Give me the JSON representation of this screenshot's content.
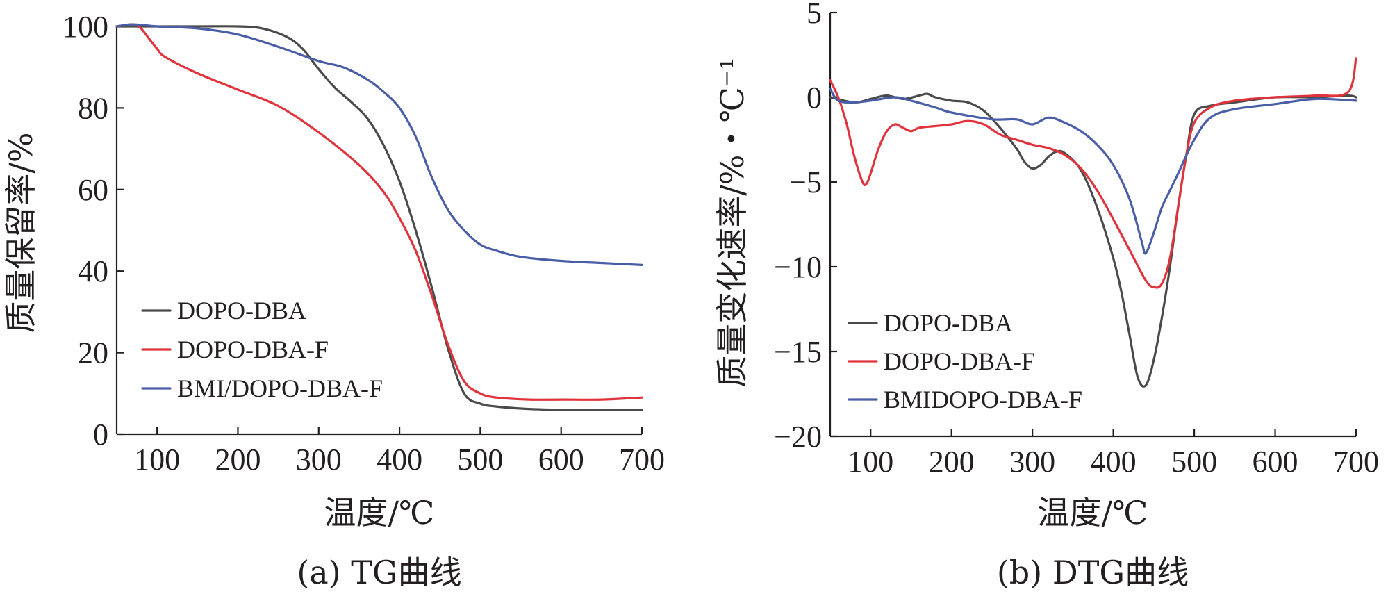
{
  "chart_data": [
    {
      "type": "line",
      "caption": "(a) TG曲线",
      "xlabel": "温度/℃",
      "ylabel": "质量保留率/%",
      "xlim": [
        50,
        700
      ],
      "ylim": [
        0,
        100
      ],
      "xticks": [
        100,
        200,
        300,
        400,
        500,
        600,
        700
      ],
      "yticks": [
        0,
        20,
        40,
        60,
        80,
        100
      ],
      "legend_position": "bottom-left",
      "series": [
        {
          "name": "DOPO-DBA",
          "color": "#4a4a4a",
          "x": [
            50,
            100,
            150,
            200,
            230,
            260,
            280,
            300,
            320,
            340,
            360,
            380,
            400,
            420,
            440,
            460,
            480,
            500,
            520,
            560,
            600,
            650,
            700
          ],
          "y": [
            100,
            100,
            100,
            100,
            99.5,
            97.5,
            94.5,
            89.5,
            85,
            81.5,
            77.5,
            71,
            62,
            50,
            36,
            21,
            10,
            7.5,
            6.8,
            6.2,
            6,
            6,
            6
          ]
        },
        {
          "name": "DOPO-DBA-F",
          "color": "#e0333c",
          "x": [
            50,
            70,
            80,
            90,
            100,
            110,
            150,
            200,
            250,
            300,
            350,
            380,
            400,
            420,
            440,
            460,
            480,
            500,
            520,
            560,
            600,
            650,
            700
          ],
          "y": [
            100,
            100.5,
            99.5,
            97,
            94.5,
            92.5,
            88.5,
            84.5,
            80.5,
            74,
            66,
            59.5,
            53,
            45,
            34,
            22,
            13,
            10,
            9,
            8.5,
            8.5,
            8.5,
            9
          ]
        },
        {
          "name": "BMI/DOPO-DBA-F",
          "color": "#4a5ea8",
          "x": [
            50,
            70,
            100,
            150,
            200,
            250,
            300,
            330,
            360,
            380,
            400,
            420,
            440,
            460,
            480,
            500,
            520,
            550,
            600,
            650,
            700
          ],
          "y": [
            100,
            100.5,
            100,
            99.5,
            98,
            95,
            91.5,
            90,
            87,
            84,
            80,
            73,
            63,
            55,
            50,
            46.5,
            45,
            43.5,
            42.5,
            42,
            41.5
          ]
        }
      ]
    },
    {
      "type": "line",
      "caption": "(b) DTG曲线",
      "xlabel": "温度/℃",
      "ylabel": "质量变化速率/%・℃⁻¹",
      "xlim": [
        50,
        700
      ],
      "ylim": [
        -20,
        5
      ],
      "xticks": [
        100,
        200,
        300,
        400,
        500,
        600,
        700
      ],
      "yticks": [
        -20,
        -15,
        -10,
        -5,
        0,
        5
      ],
      "ytick_labels": [
        "−20",
        "−15",
        "−10",
        "−5",
        "0",
        "5"
      ],
      "legend_position": "bottom-left",
      "series": [
        {
          "name": "DOPO-DBA",
          "color": "#4a4a4a",
          "x": [
            50,
            80,
            100,
            120,
            140,
            160,
            170,
            180,
            200,
            220,
            240,
            260,
            280,
            290,
            300,
            310,
            320,
            330,
            340,
            360,
            380,
            400,
            410,
            420,
            430,
            440,
            450,
            460,
            470,
            480,
            490,
            500,
            520,
            550,
            600,
            650,
            690,
            700
          ],
          "y": [
            0,
            -0.3,
            -0.1,
            0.1,
            -0.1,
            0.1,
            0.2,
            0,
            -0.2,
            -0.3,
            -0.8,
            -1.8,
            -3,
            -3.8,
            -4.2,
            -4,
            -3.5,
            -3.2,
            -3.3,
            -4.3,
            -6.5,
            -9.5,
            -11.5,
            -14,
            -16.5,
            -17,
            -15.5,
            -13,
            -10,
            -6.5,
            -3.5,
            -1,
            -0.5,
            -0.3,
            0,
            0,
            0.1,
            0
          ]
        },
        {
          "name": "DOPO-DBA-F",
          "color": "#e0333c",
          "x": [
            50,
            60,
            70,
            80,
            90,
            95,
            100,
            110,
            120,
            130,
            140,
            150,
            160,
            180,
            200,
            220,
            240,
            260,
            280,
            300,
            320,
            340,
            360,
            380,
            400,
            420,
            440,
            450,
            460,
            470,
            480,
            490,
            500,
            520,
            550,
            600,
            650,
            690,
            700
          ],
          "y": [
            1,
            0,
            -1.5,
            -3.5,
            -5,
            -5.1,
            -4.5,
            -3,
            -2,
            -1.6,
            -1.8,
            -2,
            -1.8,
            -1.7,
            -1.6,
            -1.4,
            -1.6,
            -2.2,
            -2.5,
            -2.8,
            -3,
            -3.4,
            -4.2,
            -5.5,
            -7.2,
            -9,
            -10.8,
            -11.2,
            -11,
            -9.5,
            -6.5,
            -3.5,
            -1.5,
            -0.6,
            -0.2,
            0,
            0.1,
            0.3,
            2.3
          ]
        },
        {
          "name": "BMIDOPO-DBA-F",
          "color": "#4a5ea8",
          "x": [
            50,
            60,
            80,
            100,
            130,
            150,
            180,
            200,
            250,
            280,
            300,
            320,
            340,
            360,
            380,
            400,
            420,
            435,
            440,
            450,
            460,
            470,
            480,
            500,
            520,
            550,
            600,
            650,
            700
          ],
          "y": [
            0.5,
            -0.2,
            -0.3,
            -0.2,
            0,
            -0.2,
            -0.6,
            -0.9,
            -1.3,
            -1.3,
            -1.6,
            -1.2,
            -1.5,
            -2,
            -2.8,
            -4,
            -6,
            -8.5,
            -9.2,
            -8,
            -6.5,
            -5.5,
            -4.5,
            -2.5,
            -1.2,
            -0.7,
            -0.4,
            -0.1,
            -0.2
          ]
        }
      ]
    }
  ]
}
